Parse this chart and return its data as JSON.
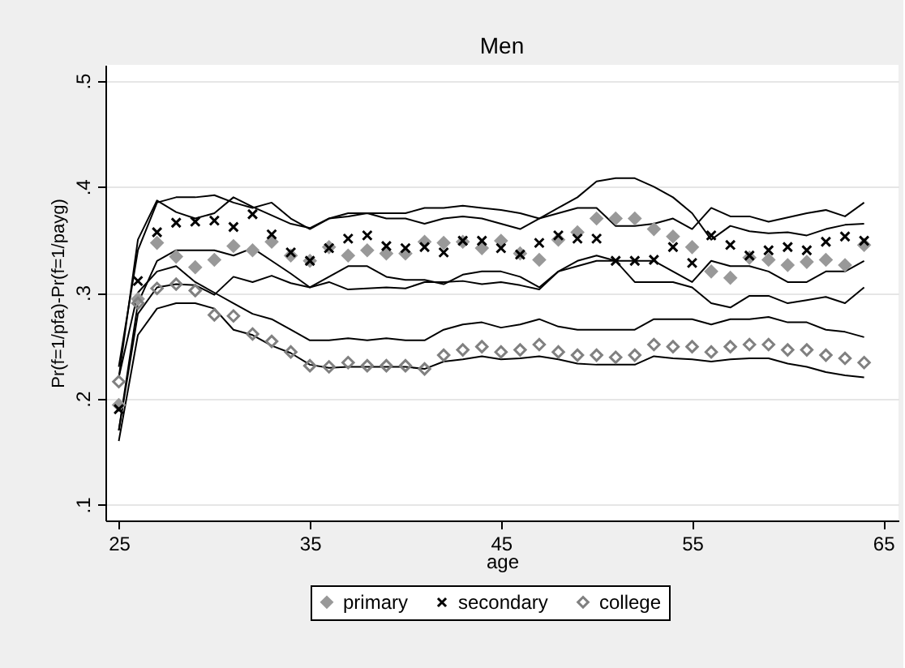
{
  "chart_data": {
    "type": "scatter",
    "title": "Men",
    "xlabel": "age",
    "ylabel": "Pr(f=1/pfa)-Pr(f=1/payg)",
    "x": [
      25,
      26,
      27,
      28,
      29,
      30,
      31,
      32,
      33,
      34,
      35,
      36,
      37,
      38,
      39,
      40,
      41,
      42,
      43,
      44,
      45,
      46,
      47,
      48,
      49,
      50,
      51,
      52,
      53,
      54,
      55,
      56,
      57,
      58,
      59,
      60,
      61,
      62,
      63,
      64
    ],
    "series": [
      {
        "name": "primary",
        "color": "#999999",
        "marker": "diamond",
        "values": [
          0.194,
          0.294,
          0.347,
          0.334,
          0.324,
          0.331,
          0.344,
          0.34,
          0.348,
          0.335,
          0.33,
          0.343,
          0.335,
          0.34,
          0.337,
          0.337,
          0.348,
          0.347,
          0.348,
          0.342,
          0.349,
          0.337,
          0.331,
          0.35,
          0.357,
          0.37,
          0.37,
          0.37,
          0.36,
          0.353,
          0.343,
          0.32,
          0.314,
          0.333,
          0.331,
          0.326,
          0.329,
          0.331,
          0.326,
          0.345
        ]
      },
      {
        "name": "secondary",
        "color": "#000000",
        "marker": "cross",
        "values": [
          0.19,
          0.311,
          0.357,
          0.366,
          0.367,
          0.368,
          0.362,
          0.374,
          0.355,
          0.338,
          0.33,
          0.342,
          0.351,
          0.354,
          0.344,
          0.342,
          0.343,
          0.338,
          0.349,
          0.349,
          0.342,
          0.336,
          0.347,
          0.354,
          0.351,
          0.351,
          0.33,
          0.33,
          0.331,
          0.343,
          0.328,
          0.354,
          0.345,
          0.335,
          0.34,
          0.343,
          0.34,
          0.348,
          0.353,
          0.349
        ]
      },
      {
        "name": "college",
        "color": "#808080",
        "marker": "diamond",
        "values": [
          0.216,
          0.29,
          0.304,
          0.308,
          0.302,
          0.279,
          0.278,
          0.261,
          0.254,
          0.244,
          0.231,
          0.23,
          0.234,
          0.231,
          0.231,
          0.231,
          0.228,
          0.241,
          0.246,
          0.249,
          0.244,
          0.246,
          0.251,
          0.244,
          0.241,
          0.241,
          0.239,
          0.241,
          0.251,
          0.249,
          0.249,
          0.244,
          0.249,
          0.251,
          0.251,
          0.246,
          0.246,
          0.241,
          0.238,
          0.234
        ]
      },
      {
        "type": "line",
        "color": "#000000",
        "values": [
          0.17,
          0.28,
          0.305,
          0.308,
          0.307,
          0.298,
          0.315,
          0.31,
          0.316,
          0.309,
          0.305,
          0.31,
          0.303,
          0.304,
          0.305,
          0.304,
          0.31,
          0.31,
          0.311,
          0.308,
          0.31,
          0.307,
          0.303,
          0.32,
          0.325,
          0.33,
          0.33,
          0.31,
          0.31,
          0.31,
          0.305,
          0.29,
          0.286,
          0.297,
          0.297,
          0.29,
          0.293,
          0.296,
          0.29,
          0.305
        ]
      },
      {
        "type": "line",
        "color": "#000000",
        "values": [
          0.22,
          0.35,
          0.387,
          0.376,
          0.37,
          0.375,
          0.39,
          0.381,
          0.373,
          0.365,
          0.361,
          0.37,
          0.375,
          0.375,
          0.375,
          0.375,
          0.38,
          0.38,
          0.382,
          0.38,
          0.378,
          0.375,
          0.37,
          0.38,
          0.39,
          0.405,
          0.408,
          0.408,
          0.4,
          0.39,
          0.375,
          0.35,
          0.363,
          0.358,
          0.356,
          0.357,
          0.354,
          0.36,
          0.364,
          0.365
        ]
      },
      {
        "type": "line",
        "color": "#000000",
        "values": [
          0.17,
          0.29,
          0.33,
          0.34,
          0.34,
          0.34,
          0.335,
          0.342,
          0.33,
          0.318,
          0.305,
          0.315,
          0.325,
          0.325,
          0.315,
          0.312,
          0.312,
          0.308,
          0.317,
          0.32,
          0.32,
          0.315,
          0.305,
          0.32,
          0.33,
          0.335,
          0.33,
          0.33,
          0.33,
          0.32,
          0.31,
          0.33,
          0.325,
          0.325,
          0.32,
          0.31,
          0.31,
          0.32,
          0.32,
          0.33
        ]
      },
      {
        "type": "line",
        "color": "#000000",
        "values": [
          0.23,
          0.34,
          0.385,
          0.39,
          0.39,
          0.392,
          0.385,
          0.38,
          0.385,
          0.37,
          0.36,
          0.37,
          0.372,
          0.375,
          0.37,
          0.37,
          0.365,
          0.37,
          0.372,
          0.37,
          0.365,
          0.36,
          0.37,
          0.375,
          0.38,
          0.38,
          0.363,
          0.363,
          0.365,
          0.37,
          0.36,
          0.38,
          0.372,
          0.372,
          0.367,
          0.371,
          0.375,
          0.378,
          0.372,
          0.385
        ]
      },
      {
        "type": "line",
        "color": "#000000",
        "values": [
          0.16,
          0.26,
          0.285,
          0.29,
          0.29,
          0.285,
          0.265,
          0.26,
          0.25,
          0.243,
          0.232,
          0.229,
          0.23,
          0.23,
          0.23,
          0.23,
          0.228,
          0.235,
          0.237,
          0.24,
          0.237,
          0.238,
          0.24,
          0.237,
          0.233,
          0.232,
          0.232,
          0.232,
          0.24,
          0.238,
          0.237,
          0.235,
          0.237,
          0.238,
          0.238,
          0.233,
          0.23,
          0.225,
          0.222,
          0.22
        ]
      },
      {
        "type": "line",
        "color": "#000000",
        "values": [
          0.22,
          0.3,
          0.32,
          0.325,
          0.31,
          0.3,
          0.29,
          0.28,
          0.275,
          0.265,
          0.255,
          0.255,
          0.257,
          0.255,
          0.257,
          0.255,
          0.255,
          0.265,
          0.27,
          0.272,
          0.267,
          0.27,
          0.275,
          0.268,
          0.265,
          0.265,
          0.265,
          0.265,
          0.275,
          0.275,
          0.275,
          0.27,
          0.275,
          0.275,
          0.277,
          0.272,
          0.272,
          0.265,
          0.263,
          0.258
        ]
      }
    ],
    "xlim": [
      24.3,
      65.8
    ],
    "xticks": [
      25,
      35,
      45,
      55,
      65
    ],
    "ylim": [
      0.085,
      0.515
    ],
    "yticks": [
      {
        "value": 0.1,
        "label": ".1"
      },
      {
        "value": 0.2,
        "label": ".2"
      },
      {
        "value": 0.3,
        "label": ".3"
      },
      {
        "value": 0.4,
        "label": ".4"
      },
      {
        "value": 0.5,
        "label": ".5"
      }
    ],
    "grid": "y",
    "legend": "bottom"
  }
}
